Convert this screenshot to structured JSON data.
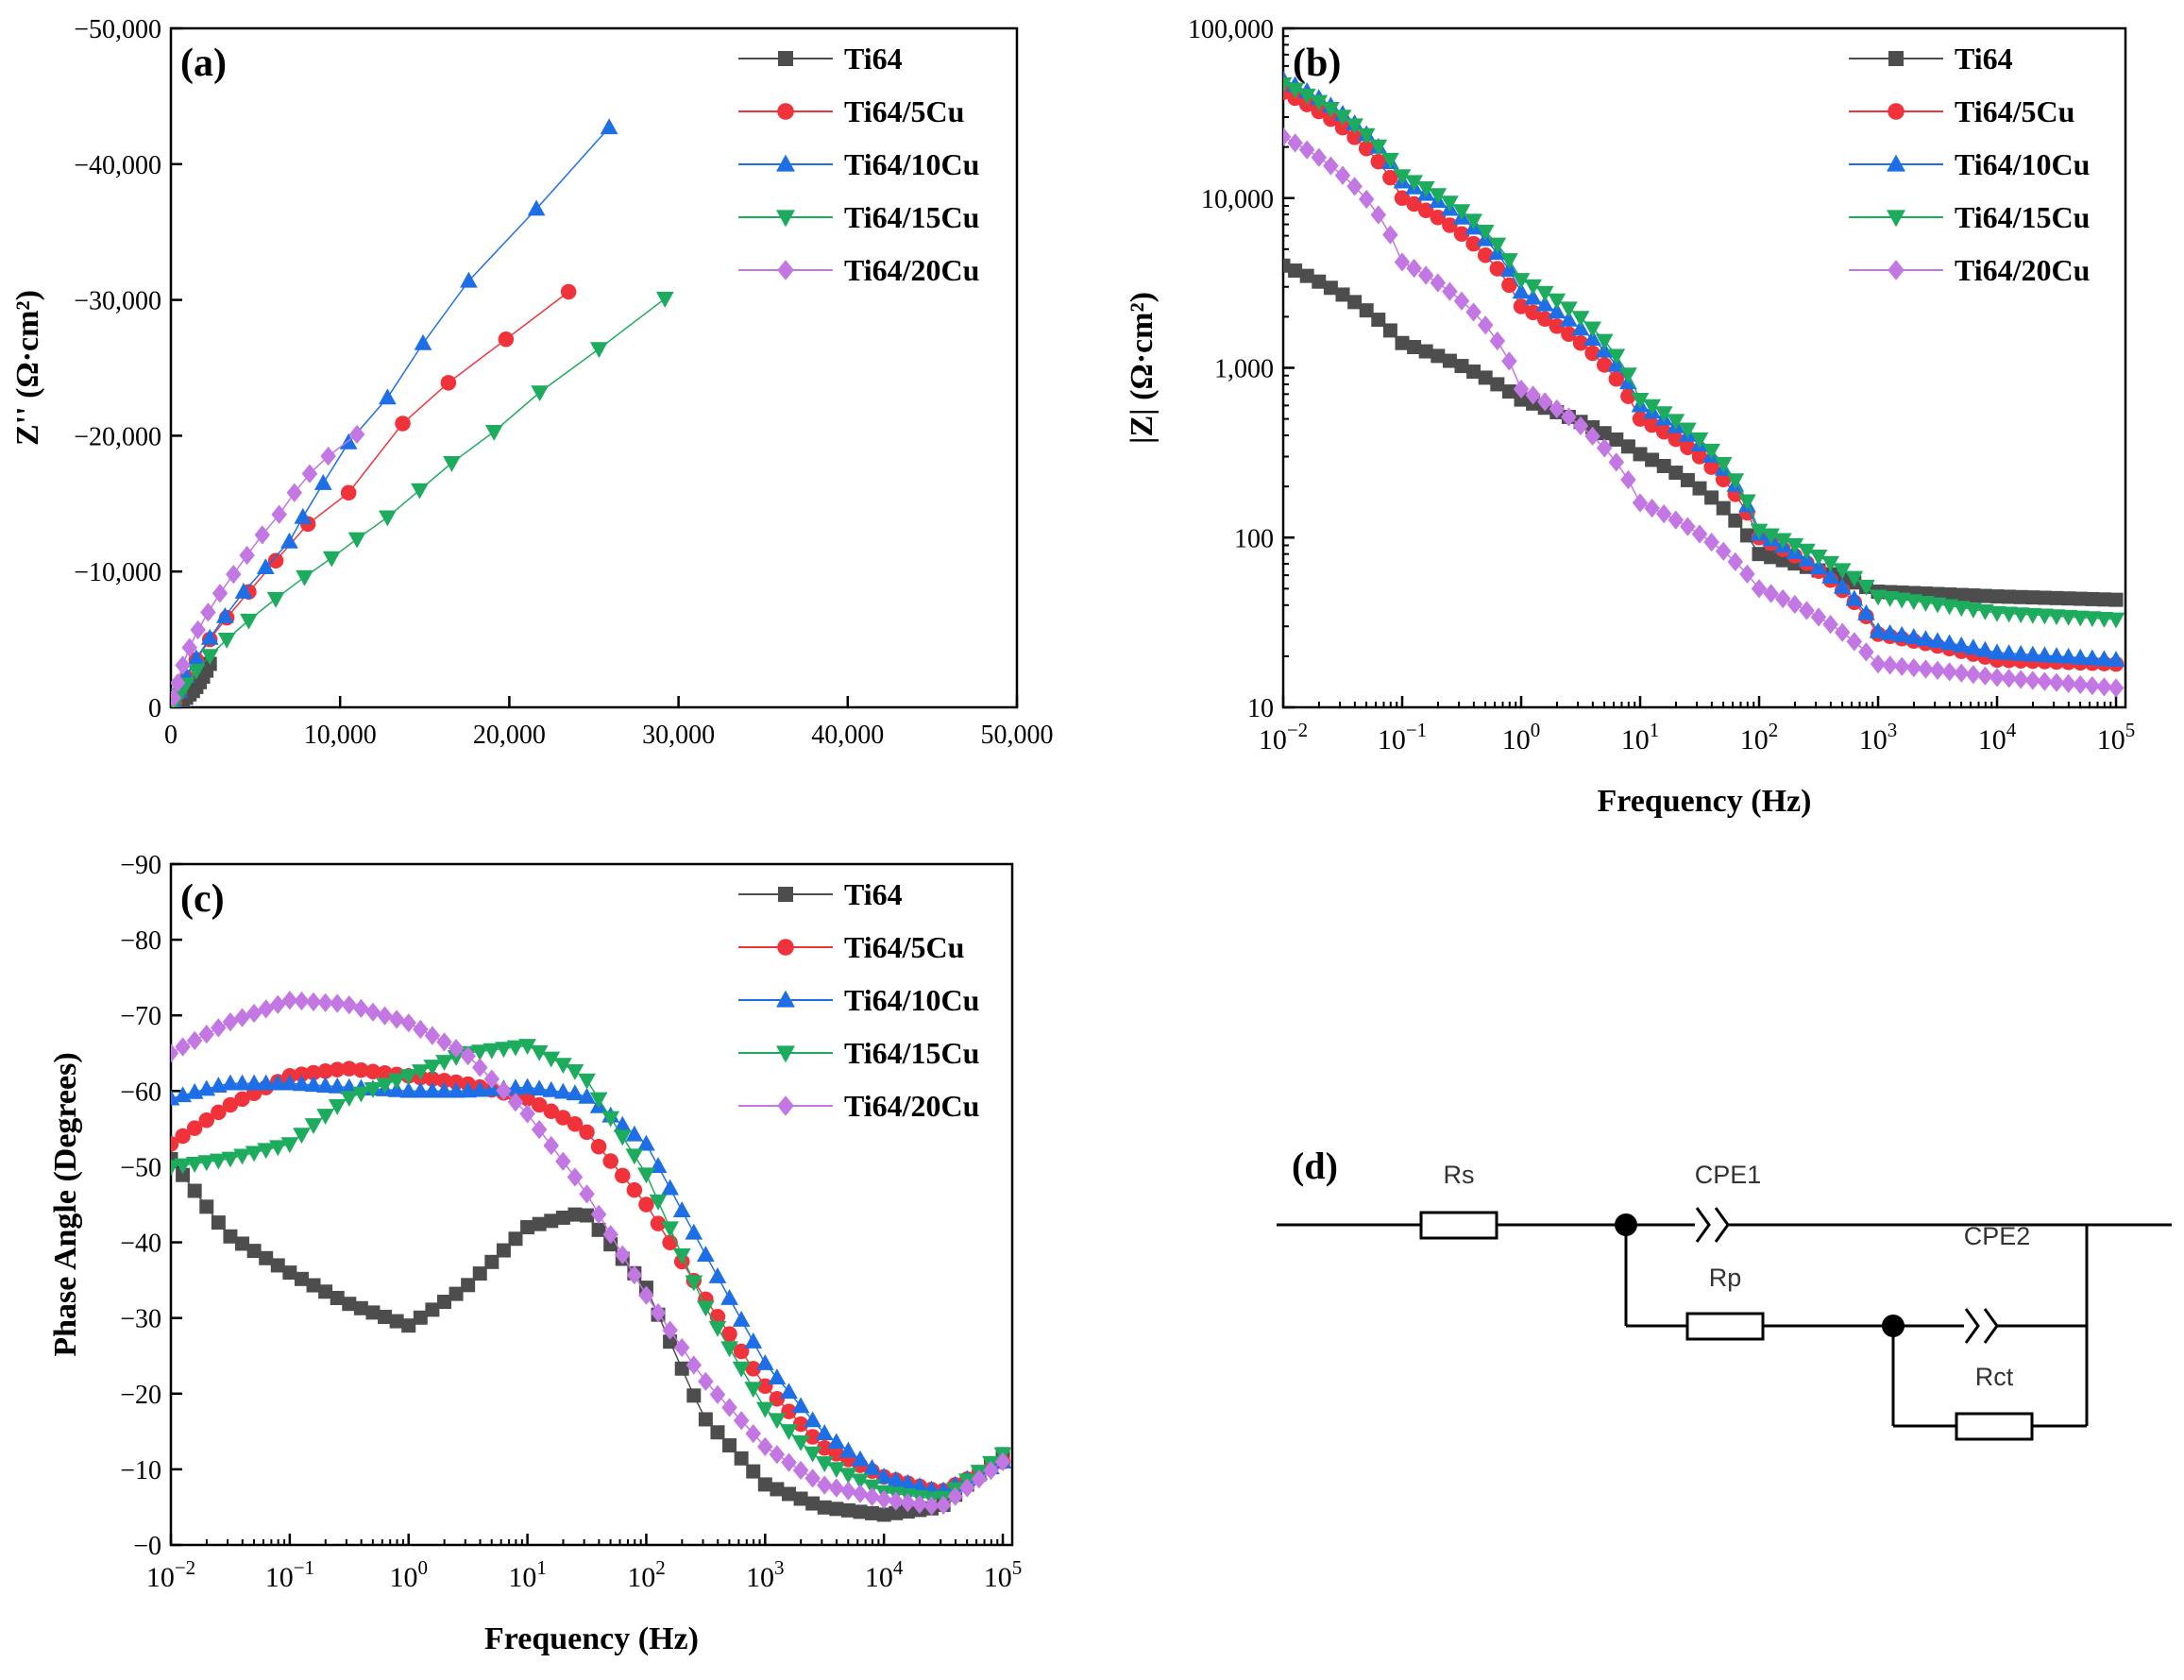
{
  "figure": {
    "colors": {
      "Ti64": "#4d4d4d",
      "Ti64/5Cu": "#f0333b",
      "Ti64/10Cu": "#1e6fe6",
      "Ti64/15Cu": "#1dab5e",
      "Ti64/20Cu": "#c277e2"
    },
    "markers": {
      "Ti64": "square",
      "Ti64/5Cu": "circle",
      "Ti64/10Cu": "triangle-up",
      "Ti64/15Cu": "triangle-down",
      "Ti64/20Cu": "diamond"
    },
    "legend_entries": [
      "Ti64",
      "Ti64/5Cu",
      "Ti64/10Cu",
      "Ti64/15Cu",
      "Ti64/20Cu"
    ]
  },
  "chart_data": [
    {
      "id": "a",
      "type": "scatter",
      "panel_label": "(a)",
      "xlabel": "",
      "ylabel": "Z'' (Ω·cm²)",
      "xlim": [
        0,
        50000
      ],
      "ylim": [
        0,
        -50000
      ],
      "x_ticks": [
        0,
        10000,
        20000,
        30000,
        40000,
        50000
      ],
      "x_tick_labels": [
        "0",
        "10,000",
        "20,000",
        "30,000",
        "40,000",
        "50,000"
      ],
      "y_ticks": [
        0,
        -10000,
        -20000,
        -30000,
        -40000,
        -50000
      ],
      "y_tick_labels": [
        "0",
        "−10,000",
        "−20,000",
        "−30,000",
        "−40,000",
        "−50,000"
      ],
      "legend_position": "top-right",
      "series": [
        {
          "name": "Ti64",
          "x": [
            120,
            300,
            500,
            700,
            900,
            1100,
            1300,
            1500,
            1700,
            1900,
            2100,
            2300
          ],
          "y": [
            -50,
            -150,
            -300,
            -500,
            -700,
            -950,
            -1200,
            -1500,
            -1850,
            -2250,
            -2700,
            -3200
          ]
        },
        {
          "name": "Ti64/5Cu",
          "x": [
            200,
            500,
            900,
            1500,
            2300,
            3300,
            4600,
            6200,
            8100,
            10500,
            13700,
            16400,
            19800,
            23500
          ],
          "y": [
            -300,
            -1100,
            -2200,
            -3500,
            -5000,
            -6600,
            -8500,
            -10800,
            -13500,
            -15800,
            -20900,
            -23900,
            -27100,
            -30600
          ]
        },
        {
          "name": "Ti64/10Cu",
          "x": [
            200,
            500,
            900,
            1500,
            2300,
            3200,
            4300,
            5600,
            7000,
            7800,
            9000,
            10500,
            12800,
            14900,
            17600,
            21600,
            25900
          ],
          "y": [
            -350,
            -1200,
            -2300,
            -3600,
            -5100,
            -6700,
            -8500,
            -10300,
            -12200,
            -14000,
            -16500,
            -19500,
            -22800,
            -26800,
            -31400,
            -36700,
            -42700
          ]
        },
        {
          "name": "Ti64/15Cu",
          "x": [
            200,
            500,
            900,
            1500,
            2300,
            3300,
            4600,
            6200,
            7900,
            9500,
            11000,
            12800,
            14700,
            16600,
            19100,
            21800,
            25300,
            29200
          ],
          "y": [
            -250,
            -900,
            -1700,
            -2700,
            -3800,
            -5000,
            -6400,
            -8000,
            -9600,
            -11000,
            -12400,
            -14000,
            -16000,
            -18000,
            -20300,
            -23200,
            -26400,
            -30100
          ]
        },
        {
          "name": "Ti64/20Cu",
          "x": [
            150,
            400,
            700,
            1100,
            1600,
            2200,
            2900,
            3700,
            4500,
            5400,
            6400,
            7300,
            8200,
            9300,
            11000
          ],
          "y": [
            -700,
            -1800,
            -3100,
            -4400,
            -5700,
            -7000,
            -8400,
            -9800,
            -11200,
            -12700,
            -14200,
            -15800,
            -17200,
            -18500,
            -20100
          ]
        }
      ]
    },
    {
      "id": "b",
      "type": "scatter",
      "panel_label": "(b)",
      "xlabel": "Frequency (Hz)",
      "ylabel": "|Z| (Ω·cm²)",
      "x_scale": "log",
      "y_scale": "log",
      "xlim": [
        0.01,
        120000
      ],
      "ylim": [
        10,
        100000
      ],
      "x_tick_exponents": [
        -2,
        -1,
        0,
        1,
        2,
        3,
        4,
        5
      ],
      "x_tick_base": "10",
      "y_ticks": [
        10,
        100,
        1000,
        10000,
        100000
      ],
      "y_tick_labels": [
        "10",
        "100",
        "1,000",
        "10,000",
        "100,000"
      ],
      "legend_position": "top-right",
      "series": [
        {
          "name": "Ti64",
          "x": [
            0.01,
            0.1,
            1,
            10,
            100,
            1000,
            10000,
            100000
          ],
          "y": [
            4000,
            1400,
            650,
            310,
            80,
            48,
            45,
            43
          ]
        },
        {
          "name": "Ti64/5Cu",
          "x": [
            0.01,
            0.1,
            1,
            10,
            100,
            1000,
            10000,
            100000
          ],
          "y": [
            42000,
            10000,
            2300,
            500,
            100,
            27,
            19,
            18
          ]
        },
        {
          "name": "Ti64/10Cu",
          "x": [
            0.01,
            0.1,
            1,
            10,
            100,
            1000,
            10000,
            100000
          ],
          "y": [
            50000,
            12500,
            2800,
            600,
            105,
            28,
            21,
            19
          ]
        },
        {
          "name": "Ti64/15Cu",
          "x": [
            0.01,
            0.1,
            1,
            10,
            100,
            1000,
            10000,
            100000
          ],
          "y": [
            47000,
            13500,
            3300,
            650,
            110,
            45,
            36,
            33
          ]
        },
        {
          "name": "Ti64/20Cu",
          "x": [
            0.01,
            0.1,
            1,
            10,
            100,
            1000,
            10000,
            100000
          ],
          "y": [
            23000,
            4200,
            750,
            160,
            50,
            18,
            15,
            13
          ]
        }
      ]
    },
    {
      "id": "c",
      "type": "scatter",
      "panel_label": "(c)",
      "xlabel": "Frequency (Hz)",
      "ylabel": "Phase Angle (Degrees)",
      "x_scale": "log",
      "xlim": [
        0.01,
        120000
      ],
      "ylim": [
        0,
        -90
      ],
      "x_tick_exponents": [
        -2,
        -1,
        0,
        1,
        2,
        3,
        4,
        5
      ],
      "x_tick_base": "10",
      "y_ticks": [
        0,
        -10,
        -20,
        -30,
        -40,
        -50,
        -60,
        -70,
        -80,
        -90
      ],
      "y_tick_labels": [
        "−0",
        "−10",
        "−20",
        "−30",
        "−40",
        "−50",
        "−60",
        "−70",
        "−80",
        "−90"
      ],
      "legend_position": "top-right",
      "series": [
        {
          "name": "Ti64",
          "x": [
            0.01,
            0.03,
            0.1,
            0.3,
            1,
            3,
            10,
            30,
            100,
            300,
            1000,
            3000,
            10000,
            30000,
            100000
          ],
          "y": [
            -51,
            -41,
            -36,
            -32,
            -29,
            -34,
            -42,
            -44,
            -34,
            -17,
            -8,
            -5,
            -4,
            -5,
            -12
          ]
        },
        {
          "name": "Ti64/5Cu",
          "x": [
            0.01,
            0.03,
            0.1,
            0.3,
            1,
            3,
            10,
            30,
            100,
            300,
            1000,
            3000,
            10000,
            30000,
            100000
          ],
          "y": [
            -53,
            -58,
            -62,
            -63,
            -62,
            -61,
            -59,
            -55,
            -45,
            -33,
            -21,
            -13,
            -9,
            -7,
            -11
          ]
        },
        {
          "name": "Ti64/10Cu",
          "x": [
            0.01,
            0.03,
            0.1,
            0.3,
            1,
            3,
            10,
            30,
            100,
            300,
            1000,
            3000,
            10000,
            30000,
            100000
          ],
          "y": [
            -59,
            -61,
            -61,
            -60.5,
            -60,
            -60,
            -60.5,
            -59.5,
            -53,
            -39,
            -24,
            -15,
            -9,
            -7,
            -11
          ]
        },
        {
          "name": "Ti64/15Cu",
          "x": [
            0.01,
            0.03,
            0.1,
            0.3,
            1,
            3,
            10,
            30,
            100,
            300,
            1000,
            3000,
            10000,
            30000,
            100000
          ],
          "y": [
            -50,
            -51,
            -53,
            -59,
            -62,
            -65,
            -66,
            -62,
            -49,
            -32,
            -18,
            -11,
            -7,
            -6,
            -12
          ]
        },
        {
          "name": "Ti64/20Cu",
          "x": [
            0.01,
            0.03,
            0.1,
            0.3,
            1,
            3,
            10,
            30,
            100,
            300,
            1000,
            3000,
            10000,
            30000,
            100000
          ],
          "y": [
            -65,
            -69,
            -72,
            -71.5,
            -69,
            -65,
            -57,
            -47,
            -33,
            -22,
            -13,
            -8,
            -6,
            -5,
            -11
          ]
        }
      ]
    }
  ],
  "circuit": {
    "panel_label": "(d)",
    "labels": {
      "rs": "Rs",
      "cpe1": "CPE1",
      "rp": "Rp",
      "cpe2": "CPE2",
      "rct": "Rct"
    }
  }
}
